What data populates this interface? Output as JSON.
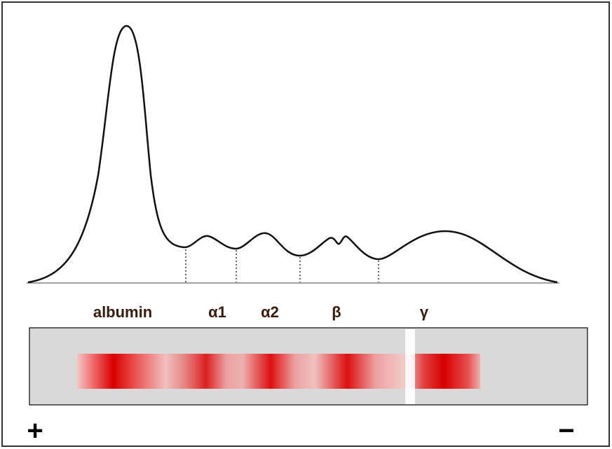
{
  "labels": {
    "albumin": "albumin",
    "alpha1": "α1",
    "alpha2": "α2",
    "beta": "β",
    "gamma": "γ"
  },
  "poles": {
    "anode": "+",
    "cathode": "−"
  }
}
